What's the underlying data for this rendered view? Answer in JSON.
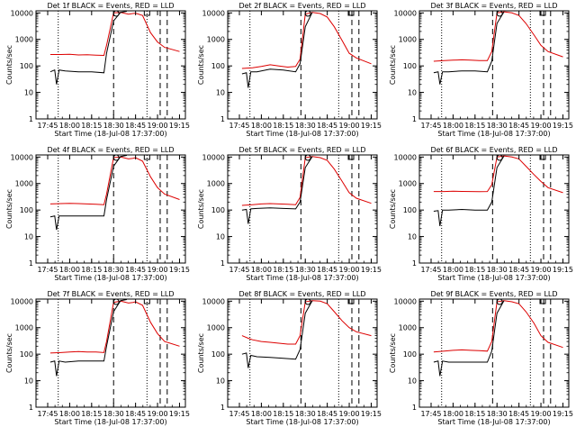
{
  "figure": {
    "ylabel": "Counts/sec",
    "xlabel": "Start Time (18-Jul-08 17:37:00)",
    "x_tick_labels": [
      "17:45",
      "18:00",
      "18:15",
      "18:30",
      "18:45",
      "19:00",
      "19:15"
    ],
    "y_tick_labels": [
      "1",
      "10",
      "100",
      "1000",
      "10000"
    ],
    "series_colors": {
      "events": "#000000",
      "lld": "#dd0000"
    }
  },
  "chart_data": [
    {
      "type": "line",
      "title": "Det 1f BLACK = Events, RED = LLD",
      "xlim": [
        17.617,
        19.317
      ],
      "ylim": [
        1,
        12000
      ],
      "ylog": true,
      "series": [
        {
          "x": [
            17.78,
            17.9,
            18.0,
            18.1,
            18.2,
            18.3,
            18.39,
            18.42,
            18.5,
            18.58,
            18.67,
            18.72,
            18.75,
            18.83,
            18.92,
            19.0,
            19.08,
            19.25
          ],
          "y": [
            270,
            270,
            275,
            260,
            265,
            255,
            250,
            600,
            10000,
            10500,
            9000,
            9500,
            9800,
            8000,
            1800,
            800,
            500,
            350
          ]
        },
        {
          "x": [
            17.78,
            17.83,
            17.85,
            17.88,
            17.95,
            18.1,
            18.25,
            18.39,
            18.42,
            18.5,
            18.58,
            18.65
          ],
          "y": [
            60,
            70,
            20,
            70,
            65,
            60,
            60,
            55,
            300,
            5000,
            10500,
            11500
          ]
        }
      ],
      "lines": {
        "dotted": [
          17.87,
          18.88
        ],
        "dashed": [
          18.5,
          19.03,
          19.11
        ],
        "markers": [
          18.53,
          18.88
        ]
      }
    },
    {
      "type": "line",
      "title": "Det 2f BLACK = Events, RED = LLD",
      "xlim": [
        17.617,
        19.317
      ],
      "ylim": [
        1,
        12000
      ],
      "ylog": true,
      "series": [
        {
          "x": [
            17.78,
            17.9,
            18.0,
            18.1,
            18.2,
            18.3,
            18.39,
            18.44,
            18.5,
            18.58,
            18.67,
            18.75,
            18.83,
            18.92,
            19.0,
            19.08,
            19.25
          ],
          "y": [
            80,
            85,
            95,
            110,
            100,
            90,
            95,
            180,
            9000,
            10500,
            9500,
            7000,
            3000,
            900,
            300,
            200,
            120
          ]
        },
        {
          "x": [
            17.78,
            17.83,
            17.85,
            17.88,
            17.95,
            18.1,
            18.25,
            18.39,
            18.44,
            18.5,
            18.58
          ],
          "y": [
            50,
            55,
            15,
            60,
            60,
            75,
            70,
            60,
            120,
            3000,
            10500
          ]
        }
      ],
      "lines": {
        "dotted": [
          17.87,
          18.88
        ],
        "dashed": [
          18.45,
          19.03,
          19.11
        ],
        "markers": [
          18.53,
          19.02
        ]
      }
    },
    {
      "type": "line",
      "title": "Det 3f BLACK = Events, RED = LLD",
      "xlim": [
        17.617,
        19.317
      ],
      "ylim": [
        1,
        12000
      ],
      "ylog": true,
      "series": [
        {
          "x": [
            17.78,
            17.9,
            18.0,
            18.1,
            18.2,
            18.3,
            18.39,
            18.44,
            18.5,
            18.58,
            18.67,
            18.75,
            18.83,
            18.92,
            19.0,
            19.08,
            19.25
          ],
          "y": [
            150,
            160,
            165,
            170,
            165,
            160,
            160,
            350,
            10000,
            11000,
            10000,
            8000,
            4000,
            1500,
            600,
            350,
            220
          ]
        },
        {
          "x": [
            17.78,
            17.83,
            17.85,
            17.88,
            17.95,
            18.1,
            18.25,
            18.39,
            18.44,
            18.5,
            18.58
          ],
          "y": [
            55,
            60,
            20,
            60,
            60,
            65,
            65,
            60,
            150,
            4000,
            11000
          ]
        }
      ],
      "lines": {
        "dotted": [
          17.87,
          18.88
        ],
        "dashed": [
          18.45,
          19.03,
          19.11
        ],
        "markers": [
          18.53,
          19.02
        ]
      }
    },
    {
      "type": "line",
      "title": "Det 4f BLACK = Events, RED = LLD",
      "xlim": [
        17.617,
        19.317
      ],
      "ylim": [
        1,
        12000
      ],
      "ylog": true,
      "series": [
        {
          "x": [
            17.78,
            17.9,
            18.0,
            18.1,
            18.2,
            18.3,
            18.39,
            18.42,
            18.5,
            18.58,
            18.67,
            18.72,
            18.75,
            18.83,
            18.92,
            19.0,
            19.08,
            19.25
          ],
          "y": [
            170,
            175,
            180,
            175,
            170,
            165,
            160,
            400,
            9500,
            10000,
            8500,
            9000,
            9500,
            7000,
            1800,
            700,
            400,
            250
          ]
        },
        {
          "x": [
            17.78,
            17.83,
            17.85,
            17.88,
            17.95,
            18.1,
            18.25,
            18.39,
            18.42,
            18.5,
            18.58,
            18.65
          ],
          "y": [
            55,
            60,
            18,
            60,
            60,
            60,
            60,
            60,
            250,
            4500,
            10500,
            11500
          ]
        }
      ],
      "lines": {
        "dotted": [
          17.87,
          18.88
        ],
        "dashed": [
          18.5,
          19.03,
          19.11
        ],
        "markers": [
          18.53,
          18.88
        ]
      }
    },
    {
      "type": "line",
      "title": "Det 5f BLACK = Events, RED = LLD",
      "xlim": [
        17.617,
        19.317
      ],
      "ylim": [
        1,
        12000
      ],
      "ylog": true,
      "series": [
        {
          "x": [
            17.78,
            17.9,
            18.0,
            18.1,
            18.2,
            18.3,
            18.39,
            18.44,
            18.5,
            18.58,
            18.67,
            18.75,
            18.83,
            18.92,
            19.0,
            19.08,
            19.25
          ],
          "y": [
            150,
            160,
            170,
            175,
            170,
            165,
            160,
            300,
            9500,
            10500,
            9500,
            7500,
            3500,
            1200,
            450,
            280,
            180
          ]
        },
        {
          "x": [
            17.78,
            17.83,
            17.85,
            17.88,
            17.95,
            18.1,
            18.25,
            18.39,
            18.44,
            18.5,
            18.58
          ],
          "y": [
            100,
            105,
            30,
            110,
            115,
            120,
            115,
            110,
            200,
            4000,
            10500
          ]
        }
      ],
      "lines": {
        "dotted": [
          17.87,
          18.88
        ],
        "dashed": [
          18.45,
          19.03,
          19.11
        ],
        "markers": [
          18.53,
          19.02
        ]
      }
    },
    {
      "type": "line",
      "title": "Det 6f BLACK = Events, RED = LLD",
      "xlim": [
        17.617,
        19.317
      ],
      "ylim": [
        1,
        12000
      ],
      "ylog": true,
      "series": [
        {
          "x": [
            17.78,
            17.9,
            18.0,
            18.1,
            18.2,
            18.3,
            18.39,
            18.44,
            18.5,
            18.58,
            18.67,
            18.75,
            18.83,
            18.92,
            19.0,
            19.08,
            19.25
          ],
          "y": [
            500,
            500,
            510,
            505,
            500,
            495,
            500,
            900,
            10000,
            11000,
            10000,
            8500,
            4500,
            2200,
            1200,
            700,
            450
          ]
        },
        {
          "x": [
            17.78,
            17.83,
            17.85,
            17.88,
            17.95,
            18.1,
            18.25,
            18.39,
            18.44,
            18.5,
            18.58
          ],
          "y": [
            90,
            95,
            25,
            100,
            100,
            105,
            100,
            100,
            200,
            4000,
            11000
          ]
        }
      ],
      "lines": {
        "dotted": [
          17.87,
          18.88
        ],
        "dashed": [
          18.45,
          19.03,
          19.11
        ],
        "markers": [
          18.53,
          19.02
        ]
      }
    },
    {
      "type": "line",
      "title": "Det 7f BLACK = Events, RED = LLD",
      "xlim": [
        17.617,
        19.317
      ],
      "ylim": [
        1,
        12000
      ],
      "ylog": true,
      "series": [
        {
          "x": [
            17.78,
            17.9,
            18.0,
            18.1,
            18.2,
            18.3,
            18.39,
            18.42,
            18.5,
            18.58,
            18.67,
            18.72,
            18.75,
            18.83,
            18.92,
            19.0,
            19.08,
            19.25
          ],
          "y": [
            110,
            115,
            120,
            125,
            120,
            120,
            115,
            300,
            9000,
            10000,
            8500,
            9000,
            9500,
            7000,
            1600,
            600,
            300,
            200
          ]
        },
        {
          "x": [
            17.78,
            17.83,
            17.85,
            17.88,
            17.95,
            18.1,
            18.25,
            18.39,
            18.42,
            18.5,
            18.58,
            18.65
          ],
          "y": [
            50,
            55,
            15,
            55,
            50,
            55,
            55,
            55,
            200,
            4000,
            10500,
            11500
          ]
        }
      ],
      "lines": {
        "dotted": [
          17.87,
          18.88
        ],
        "dashed": [
          18.5,
          19.03,
          19.11
        ],
        "markers": [
          18.53,
          18.88
        ]
      }
    },
    {
      "type": "line",
      "title": "Det 8f BLACK = Events, RED = LLD",
      "xlim": [
        17.617,
        19.317
      ],
      "ylim": [
        1,
        12000
      ],
      "ylog": true,
      "series": [
        {
          "x": [
            17.78,
            17.85,
            17.9,
            18.0,
            18.1,
            18.2,
            18.3,
            18.39,
            18.44,
            18.5,
            18.58,
            18.67,
            18.75,
            18.83,
            18.92,
            19.0,
            19.08,
            19.25
          ],
          "y": [
            500,
            400,
            350,
            300,
            280,
            260,
            240,
            240,
            500,
            9500,
            10500,
            10000,
            8000,
            4000,
            1800,
            1000,
            700,
            500
          ]
        },
        {
          "x": [
            17.78,
            17.83,
            17.85,
            17.88,
            17.95,
            18.1,
            18.25,
            18.39,
            18.44,
            18.5,
            18.58
          ],
          "y": [
            100,
            110,
            30,
            90,
            80,
            75,
            70,
            65,
            150,
            3500,
            10500
          ]
        }
      ],
      "lines": {
        "dotted": [
          17.87,
          18.88
        ],
        "dashed": [
          18.45,
          19.03,
          19.11
        ],
        "markers": [
          18.53,
          19.02
        ]
      }
    },
    {
      "type": "line",
      "title": "Det 9f BLACK = Events, RED = LLD",
      "xlim": [
        17.617,
        19.317
      ],
      "ylim": [
        1,
        12000
      ],
      "ylog": true,
      "series": [
        {
          "x": [
            17.78,
            17.9,
            18.0,
            18.1,
            18.2,
            18.3,
            18.39,
            18.44,
            18.5,
            18.58,
            18.67,
            18.75,
            18.83,
            18.92,
            19.0,
            19.08,
            19.25
          ],
          "y": [
            120,
            130,
            140,
            145,
            140,
            135,
            130,
            300,
            9500,
            10500,
            9500,
            8000,
            4000,
            1500,
            500,
            280,
            180
          ]
        },
        {
          "x": [
            17.78,
            17.83,
            17.85,
            17.88,
            17.95,
            18.1,
            18.25,
            18.39,
            18.44,
            18.5,
            18.58
          ],
          "y": [
            50,
            55,
            15,
            55,
            50,
            50,
            50,
            50,
            130,
            3500,
            10500
          ]
        }
      ],
      "lines": {
        "dotted": [
          17.87,
          18.88
        ],
        "dashed": [
          18.45,
          19.03,
          19.11
        ],
        "markers": [
          18.53,
          19.02
        ]
      }
    }
  ]
}
